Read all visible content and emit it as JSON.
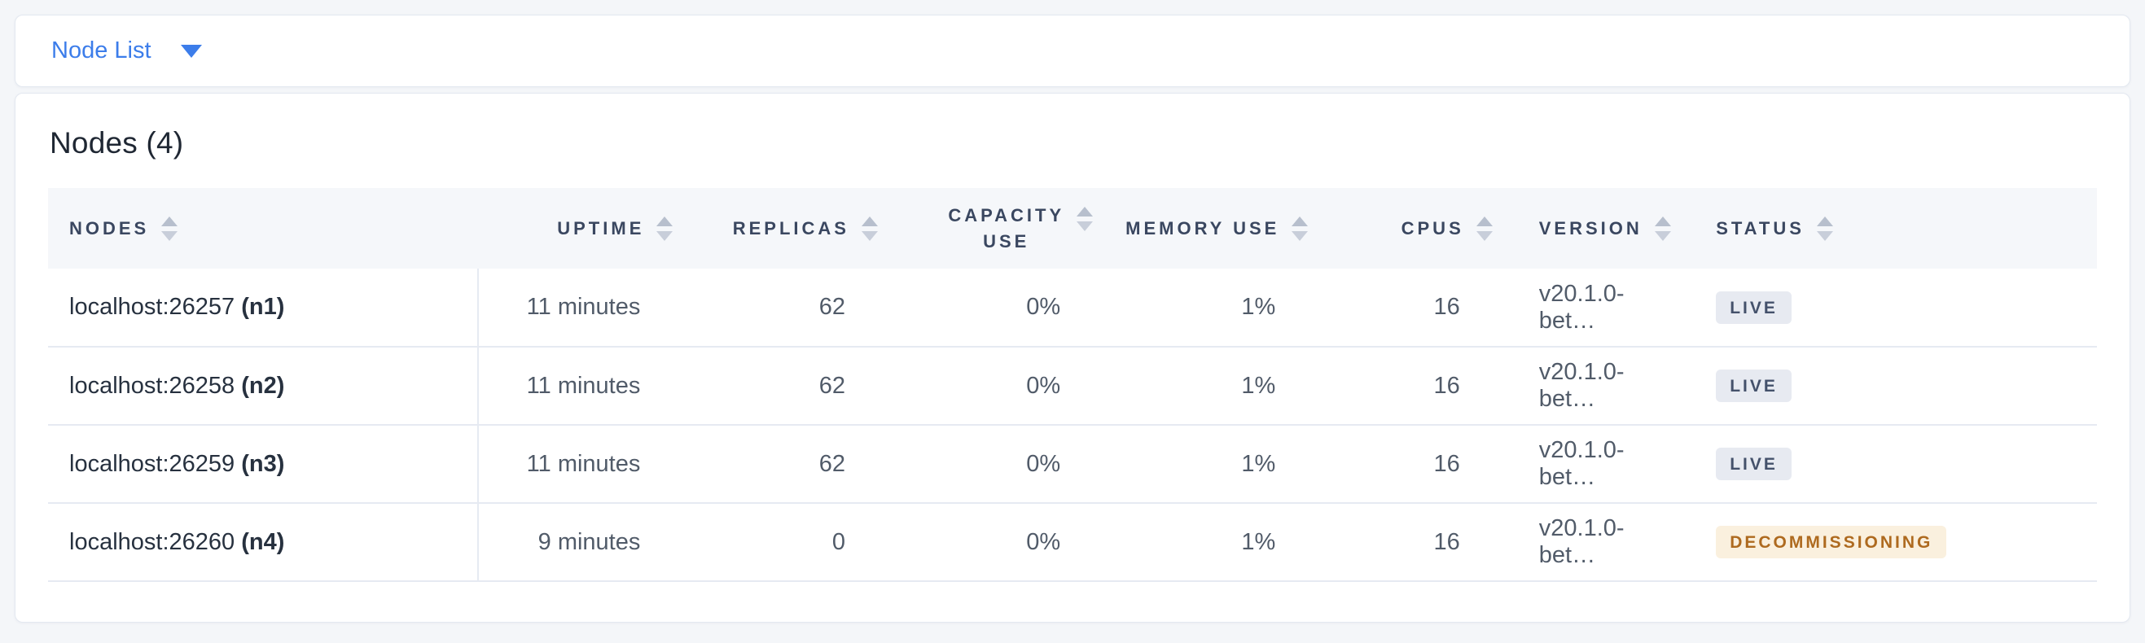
{
  "selector": {
    "label": "Node List",
    "accent_color": "#3C7DEA"
  },
  "main": {
    "title": "Nodes (4)",
    "table": {
      "columns": [
        {
          "key": "nodes",
          "label": "NODES",
          "align": "left",
          "two_line": false,
          "sortable": true
        },
        {
          "key": "uptime",
          "label": "UPTIME",
          "align": "right",
          "two_line": false,
          "sortable": true
        },
        {
          "key": "replicas",
          "label": "REPLICAS",
          "align": "right",
          "two_line": false,
          "sortable": true
        },
        {
          "key": "capacity",
          "label": "CAPACITY\nUSE",
          "align": "right",
          "two_line": true,
          "sortable": true
        },
        {
          "key": "memory",
          "label": "MEMORY USE",
          "align": "right",
          "two_line": false,
          "sortable": true
        },
        {
          "key": "cpus",
          "label": "CPUS",
          "align": "right",
          "two_line": false,
          "sortable": true
        },
        {
          "key": "version",
          "label": "VERSION",
          "align": "left",
          "two_line": false,
          "sortable": true
        },
        {
          "key": "status",
          "label": "STATUS",
          "align": "left",
          "two_line": false,
          "sortable": true
        }
      ],
      "rows": [
        {
          "address": "localhost:26257",
          "node_id": "(n1)",
          "uptime": "11 minutes",
          "replicas": "62",
          "capacity": "0%",
          "memory": "1%",
          "cpus": "16",
          "version": "v20.1.0-bet…",
          "status": "LIVE",
          "status_type": "live"
        },
        {
          "address": "localhost:26258",
          "node_id": "(n2)",
          "uptime": "11 minutes",
          "replicas": "62",
          "capacity": "0%",
          "memory": "1%",
          "cpus": "16",
          "version": "v20.1.0-bet…",
          "status": "LIVE",
          "status_type": "live"
        },
        {
          "address": "localhost:26259",
          "node_id": "(n3)",
          "uptime": "11 minutes",
          "replicas": "62",
          "capacity": "0%",
          "memory": "1%",
          "cpus": "16",
          "version": "v20.1.0-bet…",
          "status": "LIVE",
          "status_type": "live"
        },
        {
          "address": "localhost:26260",
          "node_id": "(n4)",
          "uptime": "9 minutes",
          "replicas": "0",
          "capacity": "0%",
          "memory": "1%",
          "cpus": "16",
          "version": "v20.1.0-bet…",
          "status": "DECOMMISSIONING",
          "status_type": "decommissioning"
        }
      ]
    }
  },
  "colors": {
    "page_background": "#F4F6F9",
    "card_background": "#FFFFFF",
    "card_border": "#E3E8F0",
    "table_header_background": "#F5F7FA",
    "row_divider": "#E6EAF2",
    "link_blue": "#3C7DEA",
    "title_text": "#1F2733",
    "header_text": "#3A4760",
    "value_text": "#515B69",
    "node_text": "#27313F",
    "sort_icon": "#B7BFCD",
    "badge_live_bg": "#E7EAF1",
    "badge_live_text": "#44516B",
    "badge_decommissioning_bg": "#FAF0DE",
    "badge_decommissioning_text": "#AE6A1F"
  }
}
